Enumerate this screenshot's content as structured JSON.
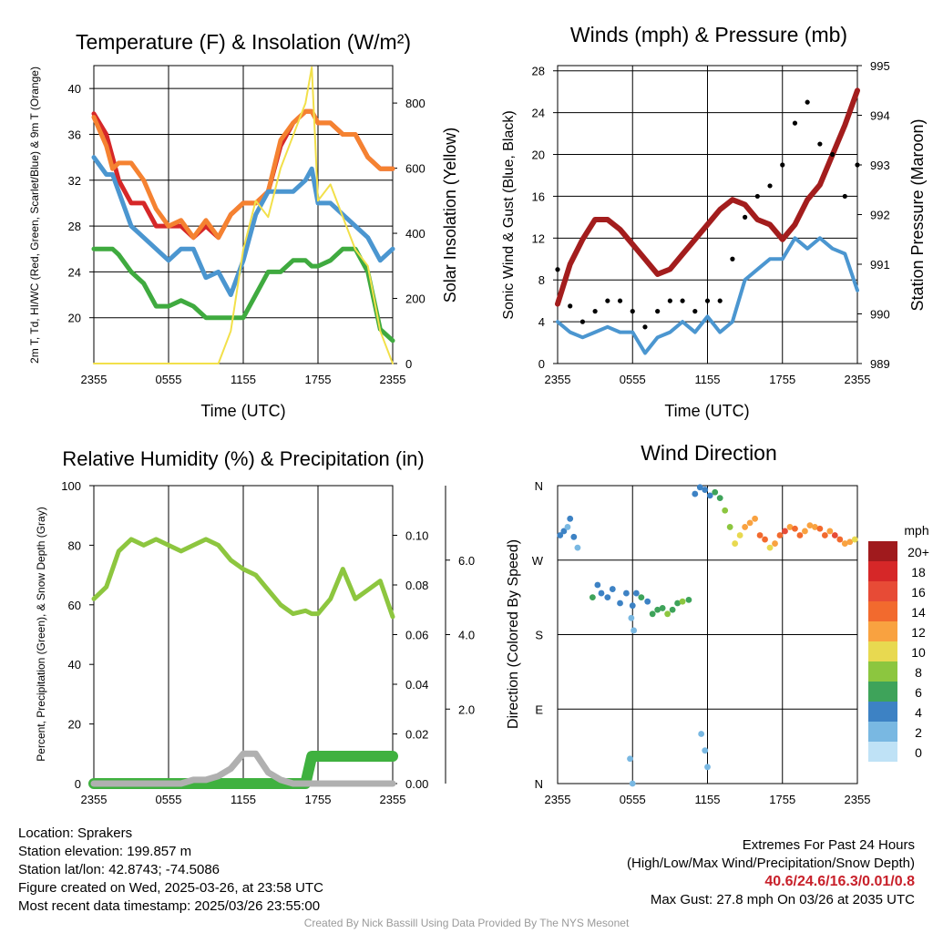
{
  "chart_data": [
    {
      "type": "line",
      "title": "Temperature (F) & Insolation (W/m²)",
      "xlabel": "Time (UTC)",
      "ylabel": "2m T, Td, HI/WC (Red, Green, Scarlet/Blue) & 9m T (Orange)",
      "y2label": "Solar Insolation (Yellow)",
      "x_ticks": [
        "2355",
        "0555",
        "1155",
        "1755",
        "2355"
      ],
      "ylim": [
        16,
        42
      ],
      "y_ticks": [
        20,
        24,
        28,
        32,
        36,
        40
      ],
      "y2lim": [
        0,
        915
      ],
      "y2_ticks": [
        0,
        200,
        400,
        600,
        800
      ],
      "x_hours": [
        0,
        1,
        1.5,
        2,
        3,
        4,
        5,
        6,
        7,
        8,
        9,
        10,
        11,
        12,
        13,
        14,
        15,
        16,
        17,
        17.5,
        18,
        19,
        20,
        21,
        22,
        23,
        24
      ],
      "series": [
        {
          "name": "Red",
          "axis": "left",
          "color": "#d62728",
          "values": [
            37.8,
            36,
            34,
            32,
            30,
            30,
            28,
            28,
            28,
            27,
            28,
            27,
            29,
            30,
            30,
            31,
            35,
            37,
            38,
            38,
            37,
            37,
            36,
            36,
            34,
            33,
            33
          ]
        },
        {
          "name": "Orange",
          "axis": "left",
          "color": "#f58231",
          "values": [
            37.5,
            35,
            33,
            33.5,
            33.5,
            32,
            29.5,
            28,
            28.5,
            27,
            28.5,
            27,
            29,
            30,
            30,
            31,
            35.5,
            37,
            38,
            38,
            37,
            37,
            36,
            36,
            34,
            33,
            33
          ]
        },
        {
          "name": "Blue",
          "axis": "left",
          "color": "#4b96d0",
          "values": [
            34,
            32.5,
            32.5,
            31,
            28,
            27,
            26,
            25,
            26,
            26,
            23.5,
            24,
            22,
            25,
            29,
            31,
            31,
            31,
            32,
            33,
            30,
            30,
            29,
            28,
            27,
            25,
            26
          ]
        },
        {
          "name": "Green",
          "axis": "left",
          "color": "#3faa3f",
          "values": [
            26,
            26,
            26,
            25.5,
            24,
            23,
            21,
            21,
            21.5,
            21,
            20,
            20,
            20,
            20,
            22,
            24,
            24,
            25,
            25,
            24.5,
            24.5,
            25,
            26,
            26,
            24,
            19,
            18
          ]
        },
        {
          "name": "Yellow",
          "axis": "right",
          "color": "#f2e04a",
          "values": [
            0,
            0,
            0,
            0,
            0,
            0,
            0,
            0,
            0,
            0,
            0,
            0,
            100,
            350,
            500,
            450,
            600,
            700,
            800,
            910,
            500,
            550,
            450,
            350,
            300,
            100,
            0
          ]
        }
      ]
    },
    {
      "type": "line",
      "title": "Winds (mph) & Pressure (mb)",
      "xlabel": "Time (UTC)",
      "ylabel": "Sonic Wind & Gust (Blue, Black)",
      "y2label": "Station Pressure (Maroon)",
      "x_ticks": [
        "2355",
        "0555",
        "1155",
        "1755",
        "2355"
      ],
      "ylim": [
        0,
        28.5
      ],
      "y_ticks": [
        0,
        4,
        8,
        12,
        16,
        20,
        24,
        28
      ],
      "y2lim": [
        989,
        995
      ],
      "y2_ticks": [
        989,
        990,
        991,
        992,
        993,
        994,
        995
      ],
      "x_hours": [
        0,
        1,
        2,
        3,
        4,
        5,
        6,
        7,
        8,
        9,
        10,
        11,
        12,
        13,
        14,
        15,
        16,
        17,
        18,
        19,
        20,
        21,
        22,
        23,
        24
      ],
      "series": [
        {
          "name": "Blue",
          "axis": "left",
          "color": "#4b96d0",
          "values": [
            4,
            3,
            2.5,
            3,
            3.5,
            3,
            3,
            1,
            2.5,
            3,
            4,
            3,
            4.5,
            3,
            4,
            8,
            9,
            10,
            10,
            12,
            11,
            12,
            11,
            10.5,
            7
          ]
        },
        {
          "name": "Maroon",
          "axis": "right",
          "color": "#a31d1d",
          "values": [
            990.2,
            991,
            991.5,
            991.9,
            991.9,
            991.7,
            991.4,
            991.1,
            990.8,
            990.9,
            991.2,
            991.5,
            991.8,
            992.1,
            992.3,
            992.2,
            991.9,
            991.8,
            991.5,
            991.8,
            992.3,
            992.6,
            993.2,
            993.8,
            994.5
          ]
        },
        {
          "name": "Black",
          "axis": "left",
          "type": "scatter",
          "color": "#000000",
          "values": [
            9,
            5.5,
            4,
            5,
            6,
            6,
            5,
            3.5,
            5,
            6,
            6,
            5,
            6,
            6,
            10,
            14,
            16,
            17,
            19,
            23,
            25,
            21,
            20,
            16,
            19
          ]
        }
      ]
    },
    {
      "type": "line",
      "title": "Relative Humidity (%) & Precipitation (in)",
      "ylabel": "Percent, Precipitation (Green), & Snow Depth (Gray)",
      "x_ticks": [
        "2355",
        "0555",
        "1155",
        "1755",
        "2355"
      ],
      "ylim": [
        0,
        100
      ],
      "y_ticks": [
        0,
        20,
        40,
        60,
        80,
        100
      ],
      "y2lim": [
        0,
        0.12
      ],
      "y2_ticks": [
        "0.00",
        "0.02",
        "0.04",
        "0.06",
        "0.08",
        "0.10"
      ],
      "y3lim": [
        0,
        8
      ],
      "y3_ticks": [
        "2.0",
        "4.0",
        "6.0"
      ],
      "x_hours": [
        0,
        1,
        2,
        3,
        4,
        5,
        6,
        7,
        8,
        9,
        10,
        11,
        12,
        13,
        14,
        15,
        16,
        17,
        17.5,
        18,
        19,
        20,
        21,
        22,
        23,
        24
      ],
      "series": [
        {
          "name": "Green",
          "axis": "left",
          "color": "#8dc63f",
          "values": [
            62,
            66,
            78,
            82,
            80,
            82,
            80,
            78,
            80,
            82,
            80,
            75,
            72,
            70,
            65,
            60,
            57,
            58,
            57,
            57,
            62,
            72,
            62,
            65,
            68,
            56
          ]
        },
        {
          "name": "Precipitation",
          "axis": "right",
          "color": "#3fb13f",
          "values": [
            0,
            0,
            0,
            0,
            0,
            0,
            0,
            0,
            0,
            0,
            0,
            0,
            0,
            0,
            0,
            0,
            0,
            0,
            0.011,
            0.011,
            0.011,
            0.011,
            0.011,
            0.011,
            0.011,
            0.011
          ]
        },
        {
          "name": "Gray",
          "axis": "right3",
          "color": "#b0b0b0",
          "values": [
            0,
            0,
            0,
            0,
            0,
            0,
            0,
            0,
            0.1,
            0.1,
            0.2,
            0.4,
            0.8,
            0.8,
            0.3,
            0.1,
            0,
            0,
            0,
            0,
            0,
            0,
            0,
            0,
            0,
            0
          ]
        }
      ]
    },
    {
      "type": "scatter",
      "title": "Wind Direction",
      "ylabel": "Direction (Colored By Speed)",
      "x_ticks": [
        "2355",
        "0555",
        "1155",
        "1755",
        "2355"
      ],
      "y_ticks": [
        "N",
        "E",
        "S",
        "W",
        "N"
      ],
      "ylim": [
        0,
        360
      ],
      "legend_title": "mph",
      "legend_labels": [
        "20+",
        "18",
        "16",
        "14",
        "12",
        "10",
        "8",
        "6",
        "4",
        "2",
        "0"
      ],
      "legend_colors": [
        "#a01a1d",
        "#d62728",
        "#e74b36",
        "#f26a2e",
        "#f9a240",
        "#e8d950",
        "#8cc63f",
        "#3ea35a",
        "#3d82c4",
        "#79b8e2",
        "#bfe2f6"
      ],
      "x_hours": [
        0.2,
        0.5,
        0.8,
        1.0,
        1.3,
        1.6,
        2.8,
        3.2,
        3.5,
        4.0,
        4.4,
        5.0,
        5.5,
        6.0,
        6.3,
        6.7,
        7.2,
        7.6,
        8.0,
        8.4,
        8.8,
        9.2,
        9.6,
        10.0,
        10.5,
        11.0,
        11.4,
        11.8,
        12.2,
        12.6,
        13.0,
        13.4,
        13.8,
        14.2,
        14.6,
        15.0,
        15.4,
        15.8,
        16.2,
        16.6,
        17.0,
        17.4,
        17.8,
        18.2,
        18.6,
        19.0,
        19.4,
        19.8,
        20.2,
        20.6,
        21.0,
        21.4,
        21.8,
        22.2,
        22.6,
        23.0,
        23.4,
        23.8,
        5.8,
        6.0,
        11.5,
        11.8,
        12.0,
        6.1,
        5.9
      ],
      "values": [
        300,
        305,
        310,
        320,
        298,
        285,
        225,
        240,
        230,
        225,
        235,
        218,
        230,
        215,
        230,
        225,
        220,
        205,
        210,
        212,
        205,
        210,
        218,
        220,
        222,
        350,
        358,
        355,
        348,
        352,
        345,
        330,
        310,
        290,
        300,
        310,
        315,
        320,
        300,
        295,
        285,
        290,
        300,
        305,
        310,
        308,
        300,
        305,
        312,
        310,
        308,
        300,
        305,
        300,
        295,
        290,
        292,
        295,
        30,
        0,
        60,
        40,
        20,
        185,
        200
      ],
      "speeds": [
        3,
        3,
        2,
        4,
        3,
        2,
        6,
        4,
        3,
        4,
        3,
        4,
        3,
        4,
        4,
        5,
        3,
        6,
        5,
        6,
        7,
        6,
        5,
        7,
        6,
        4,
        3,
        4,
        3,
        6,
        5,
        7,
        8,
        9,
        10,
        11,
        12,
        12,
        14,
        13,
        10,
        12,
        13,
        15,
        12,
        14,
        13,
        12,
        11,
        12,
        13,
        14,
        12,
        15,
        14,
        12,
        11,
        10,
        1,
        2,
        1,
        1,
        2,
        1,
        1
      ]
    }
  ],
  "info": {
    "location": "Location: Sprakers",
    "elevation": "Station elevation: 199.857 m",
    "latlon": "Station lat/lon: 42.8743; -74.5086",
    "created": "Figure created on Wed, 2025-03-26, at 23:58 UTC",
    "recent": "Most recent data timestamp: 2025/03/26 23:55:00"
  },
  "extremes": {
    "title": "Extremes For Past 24 Hours",
    "subtitle": "(High/Low/Max Wind/Precipitation/Snow Depth)",
    "values": "40.6/24.6/16.3/0.01/0.8",
    "gust": "Max Gust: 27.8 mph On 03/26 at 2035 UTC"
  },
  "credit": "Created By Nick Bassill Using Data Provided By The NYS Mesonet"
}
